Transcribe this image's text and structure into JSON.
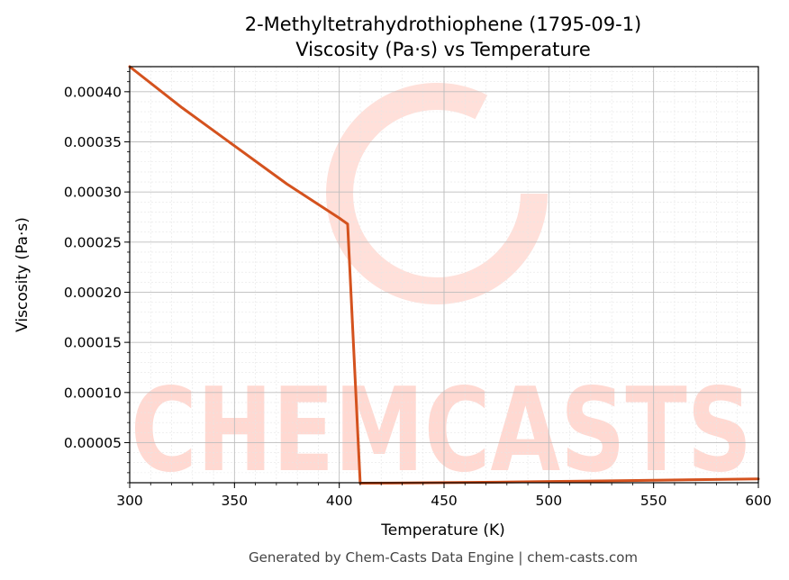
{
  "chart_data": {
    "type": "line",
    "title": "2-Methyltetrahydrothiophene (1795-09-1)",
    "subtitle": "Viscosity (Pa·s) vs Temperature",
    "xlabel": "Temperature (K)",
    "ylabel": "Viscosity (Pa·s)",
    "xlim": [
      300,
      600
    ],
    "ylim": [
      1e-05,
      0.000425
    ],
    "x_ticks": [
      300,
      350,
      400,
      450,
      500,
      550,
      600
    ],
    "x_tick_labels": [
      "300",
      "350",
      "400",
      "450",
      "500",
      "550",
      "600"
    ],
    "y_ticks": [
      5e-05,
      0.0001,
      0.00015,
      0.0002,
      0.00025,
      0.0003,
      0.00035,
      0.0004
    ],
    "y_tick_labels": [
      "0.00005",
      "0.00010",
      "0.00015",
      "0.00020",
      "0.00025",
      "0.00030",
      "0.00035",
      "0.00040"
    ],
    "grid": true,
    "series": [
      {
        "color": "#d4521e",
        "x": [
          300,
          325,
          350,
          375,
          400,
          404,
          410,
          425,
          450,
          475,
          500,
          525,
          550,
          575,
          600
        ],
        "y": [
          0.000425,
          0.000384,
          0.000346,
          0.000308,
          0.000274,
          0.000268,
          9.5e-06,
          9.7e-06,
          1.01e-05,
          1.06e-05,
          1.12e-05,
          1.18e-05,
          1.25e-05,
          1.31e-05,
          1.38e-05
        ]
      }
    ]
  },
  "footer": "Generated by Chem-Casts Data Engine | chem-casts.com",
  "watermark": "CHEMCASTS"
}
